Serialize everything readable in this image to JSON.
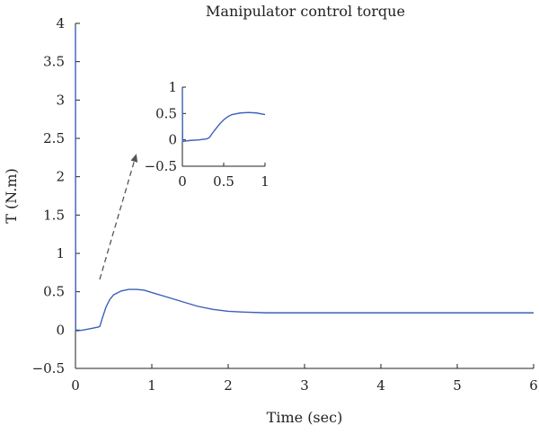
{
  "chart_data": [
    {
      "type": "line",
      "title": "Manipulator control torque",
      "xlabel": "Time (sec)",
      "ylabel": "T (N.m)",
      "xlim": [
        0,
        6
      ],
      "ylim": [
        -0.5,
        4
      ],
      "x_ticks": [
        0,
        1,
        2,
        3,
        4,
        5,
        6
      ],
      "x_tick_labels": [
        "0",
        "1",
        "2",
        "3",
        "4",
        "5",
        "6"
      ],
      "y_ticks": [
        -0.5,
        0,
        0.5,
        1,
        1.5,
        2,
        2.5,
        3,
        3.5,
        4
      ],
      "y_tick_labels": [
        "−0.5",
        "0",
        "0.5",
        "1",
        "1.5",
        "2",
        "2.5",
        "3",
        "3.5",
        "4"
      ],
      "grid": false,
      "line_color": "#3b5fb8",
      "series": [
        {
          "x": [
            0,
            0.003,
            0.02,
            0.1,
            0.2,
            0.3,
            0.32,
            0.35,
            0.4,
            0.45,
            0.5,
            0.6,
            0.7,
            0.8,
            0.9,
            1.0,
            1.2,
            1.4,
            1.6,
            1.8,
            2.0,
            2.2,
            2.5,
            3.0,
            4.0,
            5.0,
            6.0
          ],
          "y": [
            3.95,
            0.0,
            -0.01,
            0.0,
            0.02,
            0.04,
            0.05,
            0.15,
            0.3,
            0.4,
            0.46,
            0.51,
            0.53,
            0.53,
            0.52,
            0.49,
            0.43,
            0.37,
            0.31,
            0.27,
            0.245,
            0.235,
            0.225,
            0.225,
            0.225,
            0.225,
            0.225
          ]
        }
      ]
    },
    {
      "type": "line",
      "title": "",
      "xlabel": "",
      "ylabel": "",
      "xlim": [
        0,
        1
      ],
      "ylim": [
        -0.5,
        1
      ],
      "x_ticks": [
        0,
        0.5,
        1
      ],
      "x_tick_labels": [
        "0",
        "0.5",
        "1"
      ],
      "y_ticks": [
        -0.5,
        0,
        0.5,
        1
      ],
      "y_tick_labels": [
        "−0.5",
        "0",
        "0.5",
        "1"
      ],
      "grid": false,
      "line_color": "#3b5fb8",
      "series": [
        {
          "x": [
            0,
            0.003,
            0.05,
            0.1,
            0.2,
            0.3,
            0.33,
            0.36,
            0.4,
            0.45,
            0.5,
            0.55,
            0.6,
            0.7,
            0.8,
            0.9,
            1.0
          ],
          "y": [
            0.95,
            -0.03,
            -0.02,
            -0.01,
            0.0,
            0.02,
            0.05,
            0.12,
            0.2,
            0.3,
            0.38,
            0.44,
            0.48,
            0.51,
            0.52,
            0.51,
            0.48
          ]
        }
      ]
    }
  ]
}
